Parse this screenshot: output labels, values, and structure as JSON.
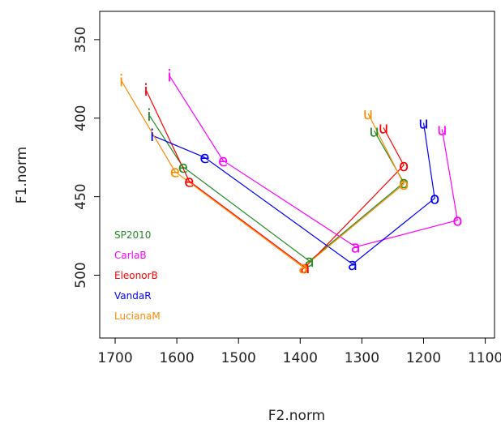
{
  "chart_data": {
    "type": "line",
    "xlabel": "F2.norm",
    "ylabel": "F1.norm",
    "x_reversed": true,
    "y_reversed": true,
    "xlim": [
      1725,
      1085
    ],
    "ylim": [
      540,
      332
    ],
    "x_ticks": [
      1700,
      1600,
      1500,
      1400,
      1300,
      1200,
      1100
    ],
    "y_ticks": [
      350,
      400,
      450,
      500
    ],
    "legend": {
      "position": "bottom-left",
      "entries": [
        "SP2010",
        "CarlaB",
        "EleonorB",
        "VandaR",
        "LucianaM"
      ]
    },
    "series": [
      {
        "name": "SP2010",
        "color": "#228B22",
        "points": [
          {
            "label": "i",
            "f2": 1645,
            "f1": 398
          },
          {
            "label": "e",
            "f2": 1590,
            "f1": 431
          },
          {
            "label": "a",
            "f2": 1385,
            "f1": 491
          },
          {
            "label": "o",
            "f2": 1232,
            "f1": 441
          },
          {
            "label": "u",
            "f2": 1280,
            "f1": 408
          }
        ]
      },
      {
        "name": "CarlaB",
        "color": "#FF00FF",
        "points": [
          {
            "label": "i",
            "f2": 1612,
            "f1": 373
          },
          {
            "label": "e",
            "f2": 1525,
            "f1": 427
          },
          {
            "label": "a",
            "f2": 1310,
            "f1": 482
          },
          {
            "label": "o",
            "f2": 1145,
            "f1": 465
          },
          {
            "label": "u",
            "f2": 1170,
            "f1": 407
          }
        ]
      },
      {
        "name": "EleonorB",
        "color": "#FF0000",
        "points": [
          {
            "label": "i",
            "f2": 1650,
            "f1": 382
          },
          {
            "label": "e",
            "f2": 1580,
            "f1": 440
          },
          {
            "label": "a",
            "f2": 1392,
            "f1": 495
          },
          {
            "label": "o",
            "f2": 1232,
            "f1": 430
          },
          {
            "label": "u",
            "f2": 1265,
            "f1": 406
          }
        ]
      },
      {
        "name": "VandaR",
        "color": "#0000FF",
        "points": [
          {
            "label": "i",
            "f2": 1640,
            "f1": 411
          },
          {
            "label": "e",
            "f2": 1555,
            "f1": 425
          },
          {
            "label": "a",
            "f2": 1315,
            "f1": 493
          },
          {
            "label": "o",
            "f2": 1182,
            "f1": 451
          },
          {
            "label": "u",
            "f2": 1200,
            "f1": 403
          }
        ]
      },
      {
        "name": "LucianaM",
        "color": "#FF8C00",
        "points": [
          {
            "label": "i",
            "f2": 1690,
            "f1": 376
          },
          {
            "label": "e",
            "f2": 1603,
            "f1": 434
          },
          {
            "label": "a",
            "f2": 1395,
            "f1": 495
          },
          {
            "label": "o",
            "f2": 1232,
            "f1": 442
          },
          {
            "label": "u",
            "f2": 1290,
            "f1": 397
          }
        ]
      }
    ]
  }
}
